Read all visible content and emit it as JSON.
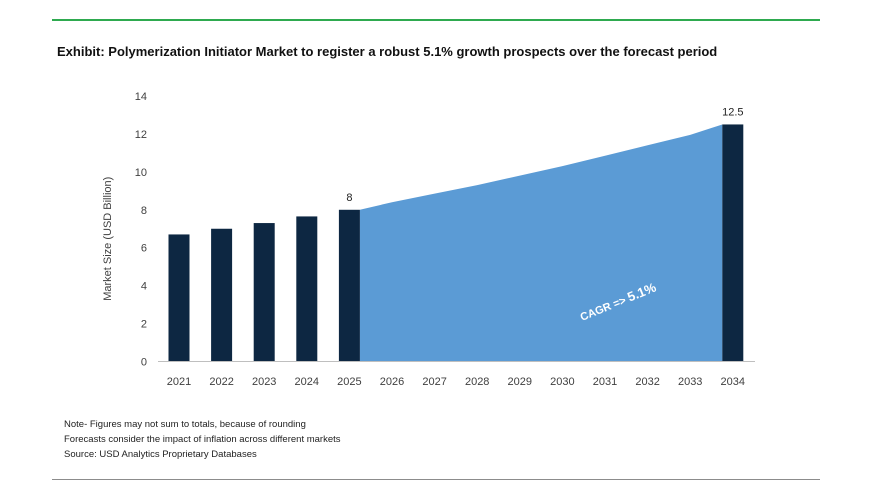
{
  "title": "Exhibit: Polymerization Initiator Market to register a robust 5.1% growth prospects over the forecast period",
  "notes": [
    "Note- Figures may not sum to totals, because of rounding",
    "Forecasts consider the impact of inflation across different markets",
    "Source: USD Analytics Proprietary Databases"
  ],
  "colors": {
    "bar": "#0d2742",
    "area": "#5b9bd5",
    "rule": "#2eaa4f"
  },
  "chart_data": {
    "type": "bar",
    "ylabel": "Market Size (USD Billion)",
    "ylim": [
      0,
      14
    ],
    "yticks": [
      0,
      2,
      4,
      6,
      8,
      10,
      12,
      14
    ],
    "categories": [
      "2021",
      "2022",
      "2023",
      "2024",
      "2025",
      "2026",
      "2027",
      "2028",
      "2029",
      "2030",
      "2031",
      "2032",
      "2033",
      "2034"
    ],
    "bars": [
      {
        "year": "2021",
        "value": 6.7
      },
      {
        "year": "2022",
        "value": 7.0
      },
      {
        "year": "2023",
        "value": 7.3
      },
      {
        "year": "2024",
        "value": 7.65
      },
      {
        "year": "2025",
        "value": 8.0,
        "label": "8"
      },
      {
        "year": "2034",
        "value": 12.5,
        "label": "12.5"
      }
    ],
    "area": {
      "name": "forecast",
      "x": [
        "2025",
        "2026",
        "2027",
        "2028",
        "2029",
        "2030",
        "2031",
        "2032",
        "2033",
        "2034"
      ],
      "values": [
        8.0,
        8.4,
        8.85,
        9.3,
        9.8,
        10.3,
        10.85,
        11.4,
        11.95,
        12.5
      ]
    },
    "annotation": {
      "text_a": "CAGR =>",
      "text_b": "5.1%"
    }
  }
}
